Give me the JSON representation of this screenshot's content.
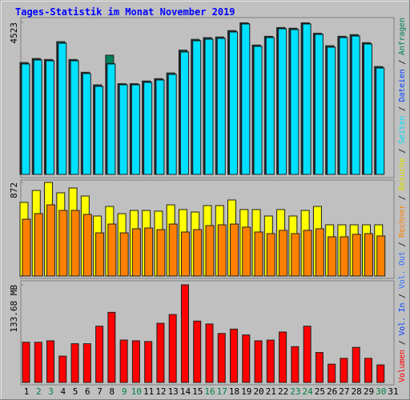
{
  "title": "Tages-Statistik im Monat November 2019",
  "legend_separator": " / ",
  "chart_data": [
    {
      "type": "bar",
      "ylim": [
        0,
        4523
      ],
      "yticks": [
        4523
      ],
      "series": [
        {
          "name": "Anfragen",
          "color": "#00805c",
          "values": [
            3330,
            3450,
            3420,
            3950,
            3420,
            3040,
            2666,
            3547,
            2700,
            2700,
            2780,
            2850,
            3020,
            3700,
            4020,
            4070,
            4090,
            4280,
            4510,
            3850,
            4110,
            4370,
            4350,
            4510,
            4200,
            3830,
            4110,
            4160,
            3920,
            3210,
            null
          ]
        },
        {
          "name": "Dateien",
          "color": "#0040ff",
          "values": [
            3300,
            3420,
            3395,
            3920,
            3395,
            3015,
            2635,
            3300,
            2680,
            2680,
            2755,
            2825,
            2990,
            3660,
            3990,
            4040,
            4060,
            4250,
            4490,
            3825,
            4085,
            4350,
            4325,
            4490,
            4180,
            3800,
            4085,
            4130,
            3895,
            3180,
            null
          ]
        },
        {
          "name": "Seiten",
          "color": "#00e0ff",
          "values": [
            3285,
            3404,
            3380,
            3904,
            3380,
            3000,
            2619,
            3285,
            2666,
            2666,
            2738,
            2809,
            2976,
            3642,
            3975,
            4023,
            4047,
            4237,
            4475,
            3809,
            4071,
            4333,
            4309,
            4475,
            4166,
            3785,
            4071,
            4118,
            3880,
            3166,
            null
          ]
        }
      ]
    },
    {
      "type": "bar",
      "ylim": [
        0,
        872
      ],
      "yticks": [
        872
      ],
      "series": [
        {
          "name": "Besuche",
          "color": "#ffff00",
          "values": [
            686,
            797,
            872,
            775,
            820,
            745,
            559,
            648,
            581,
            611,
            611,
            604,
            663,
            619,
            596,
            656,
            656,
            708,
            619,
            619,
            559,
            619,
            559,
            611,
            648,
            477,
            477,
            477,
            477,
            477,
            null
          ]
        },
        {
          "name": "Rechner",
          "color": "#ff8000",
          "values": [
            529,
            581,
            663,
            611,
            611,
            574,
            402,
            484,
            402,
            440,
            447,
            432,
            484,
            410,
            432,
            470,
            477,
            484,
            455,
            410,
            395,
            425,
            395,
            425,
            440,
            365,
            365,
            388,
            395,
            373,
            null
          ]
        }
      ]
    },
    {
      "type": "bar",
      "ylim": [
        0,
        133.68
      ],
      "yticks": [
        {
          "value": 133.68,
          "label": "133.68 MB"
        }
      ],
      "series": [
        {
          "name": "Volumen",
          "color": "#ff0000",
          "values": [
            55,
            55,
            57,
            36,
            53,
            53,
            77,
            96,
            58,
            57,
            56,
            81,
            93,
            133.68,
            84,
            80,
            67,
            73,
            65,
            57,
            58,
            69,
            49,
            77,
            41,
            25,
            33,
            48,
            33,
            24,
            null
          ]
        }
      ],
      "legend_only": [
        {
          "name": "Vol. In",
          "color": "#0040ff"
        },
        {
          "name": "Vol. Out",
          "color": "#3070ff"
        }
      ],
      "categories": [
        "1",
        "2",
        "3",
        "4",
        "5",
        "6",
        "7",
        "8",
        "9",
        "10",
        "11",
        "12",
        "13",
        "14",
        "15",
        "16",
        "17",
        "18",
        "19",
        "20",
        "21",
        "22",
        "23",
        "24",
        "25",
        "26",
        "27",
        "28",
        "29",
        "30",
        "31"
      ],
      "weekend": [
        2,
        3,
        9,
        10,
        16,
        17,
        23,
        24,
        30
      ],
      "weekday_color": "#000000",
      "weekend_color": "#008040"
    }
  ]
}
